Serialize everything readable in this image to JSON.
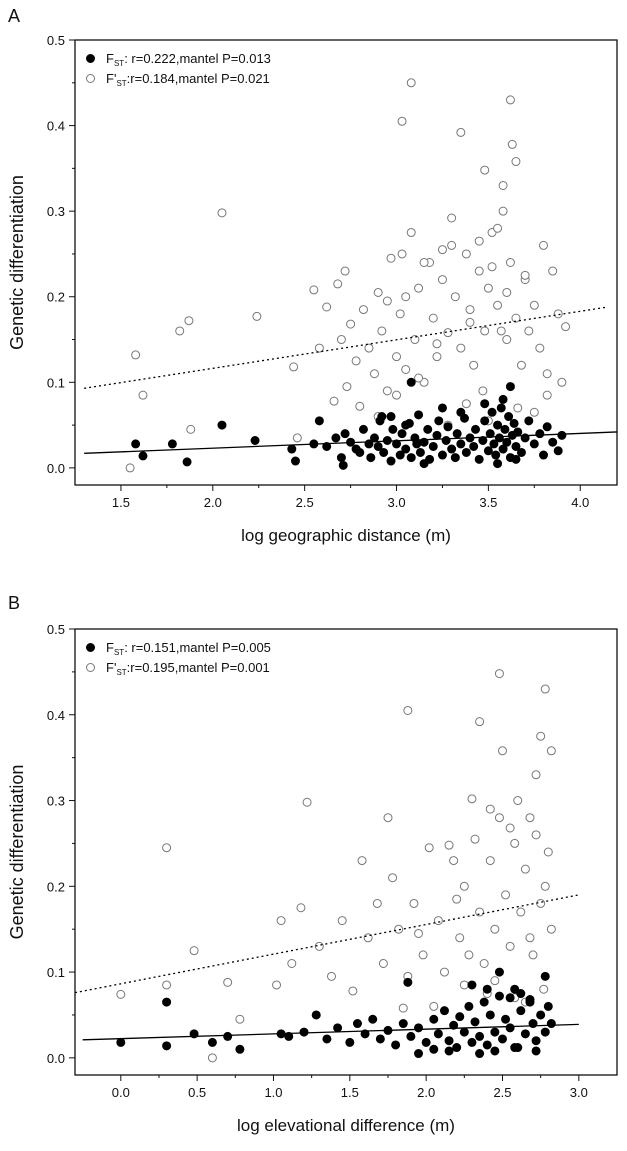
{
  "figure": {
    "panels": [
      {
        "letter": "A",
        "legend": {
          "fst_prefix": "F",
          "fst_sub": "ST",
          "fst_rest": ": r=0.222,mantel P=0.013",
          "fprime_prefix": "F'",
          "fprime_sub": "ST",
          "fprime_rest": ":r=0.184,mantel P=0.021"
        }
      },
      {
        "letter": "B",
        "legend": {
          "fst_prefix": "F",
          "fst_sub": "ST",
          "fst_rest": ": r=0.151,mantel P=0.005",
          "fprime_prefix": "F'",
          "fprime_sub": "ST",
          "fprime_rest": ":r=0.195,mantel P=0.001"
        }
      }
    ]
  },
  "chart_data": [
    {
      "type": "scatter",
      "title": "",
      "xlabel": "log geographic distance (m)",
      "ylabel": "Genetic differentiation",
      "xlim": [
        1.25,
        4.2
      ],
      "ylim": [
        -0.02,
        0.5
      ],
      "xticks": [
        1.5,
        2.0,
        2.5,
        3.0,
        3.5,
        4.0
      ],
      "xtick_labels": [
        "1.5",
        "2.0",
        "2.5",
        "3.0",
        "3.5",
        "4.0"
      ],
      "yticks": [
        0.0,
        0.1,
        0.2,
        0.3,
        0.4,
        0.5
      ],
      "ytick_labels": [
        "0.0",
        "0.1",
        "0.2",
        "0.3",
        "0.4",
        "0.5"
      ],
      "grid": false,
      "legend_position": "top-left",
      "series": [
        {
          "name": "FST: r=0.222,mantel P=0.013",
          "marker": "filled-circle",
          "color": "#000000",
          "fit": {
            "style": "solid",
            "x0": 1.3,
            "y0": 0.017,
            "x1": 4.2,
            "y1": 0.042
          },
          "x": [
            1.58,
            1.62,
            1.78,
            1.86,
            2.05,
            2.23,
            2.43,
            2.45,
            2.55,
            2.58,
            2.62,
            2.67,
            2.7,
            2.71,
            2.72,
            2.75,
            2.78,
            2.8,
            2.82,
            2.85,
            2.86,
            2.88,
            2.9,
            2.91,
            2.93,
            2.95,
            2.97,
            2.98,
            3.0,
            3.02,
            3.03,
            3.05,
            3.07,
            3.08,
            3.1,
            3.11,
            3.12,
            3.13,
            3.15,
            3.17,
            3.18,
            3.2,
            3.22,
            3.23,
            3.25,
            3.27,
            3.28,
            3.3,
            3.32,
            3.33,
            3.35,
            3.37,
            3.38,
            3.4,
            3.42,
            3.43,
            3.45,
            3.47,
            3.48,
            3.5,
            3.51,
            3.52,
            3.53,
            3.54,
            3.55,
            3.56,
            3.57,
            3.58,
            3.59,
            3.6,
            3.61,
            3.62,
            3.63,
            3.64,
            3.65,
            3.66,
            3.68,
            3.7,
            3.72,
            3.75,
            3.78,
            3.8,
            3.82,
            3.85,
            3.88,
            3.9,
            3.08,
            3.62,
            2.97,
            3.35,
            3.05,
            3.48,
            3.58,
            3.15,
            2.92,
            3.25,
            3.55,
            3.65
          ],
          "y": [
            0.028,
            0.014,
            0.028,
            0.007,
            0.05,
            0.032,
            0.022,
            0.008,
            0.028,
            0.055,
            0.025,
            0.035,
            0.012,
            0.003,
            0.04,
            0.03,
            0.022,
            0.018,
            0.045,
            0.028,
            0.012,
            0.035,
            0.025,
            0.055,
            0.018,
            0.032,
            0.008,
            0.045,
            0.028,
            0.015,
            0.04,
            0.022,
            0.052,
            0.012,
            0.035,
            0.028,
            0.062,
            0.018,
            0.03,
            0.045,
            0.01,
            0.025,
            0.038,
            0.055,
            0.015,
            0.032,
            0.048,
            0.022,
            0.012,
            0.04,
            0.028,
            0.058,
            0.018,
            0.035,
            0.025,
            0.045,
            0.01,
            0.032,
            0.055,
            0.02,
            0.04,
            0.065,
            0.028,
            0.015,
            0.05,
            0.035,
            0.07,
            0.022,
            0.045,
            0.03,
            0.06,
            0.012,
            0.038,
            0.052,
            0.025,
            0.042,
            0.018,
            0.035,
            0.055,
            0.028,
            0.04,
            0.015,
            0.048,
            0.03,
            0.02,
            0.038,
            0.1,
            0.095,
            0.06,
            0.065,
            0.05,
            0.075,
            0.08,
            0.005,
            0.06,
            0.07,
            0.005,
            0.01
          ]
        },
        {
          "name": "F'ST:r=0.184,mantel P=0.021",
          "marker": "open-circle",
          "color": "#777777",
          "fit": {
            "style": "dotted",
            "x0": 1.3,
            "y0": 0.093,
            "x1": 4.15,
            "y1": 0.188
          },
          "x": [
            1.55,
            1.58,
            1.62,
            1.82,
            1.87,
            1.88,
            2.05,
            2.24,
            2.44,
            2.46,
            2.55,
            2.58,
            2.62,
            2.66,
            2.68,
            2.7,
            2.72,
            2.73,
            2.75,
            2.78,
            2.8,
            2.82,
            2.85,
            2.88,
            2.9,
            2.92,
            2.95,
            2.97,
            3.0,
            3.02,
            3.03,
            3.05,
            3.08,
            3.1,
            3.12,
            3.15,
            3.18,
            3.2,
            3.22,
            3.25,
            3.28,
            3.3,
            3.32,
            3.35,
            3.38,
            3.4,
            3.42,
            3.45,
            3.48,
            3.5,
            3.52,
            3.55,
            3.58,
            3.6,
            3.62,
            3.65,
            3.68,
            3.7,
            3.72,
            3.75,
            3.78,
            3.8,
            3.82,
            3.85,
            3.88,
            3.9,
            3.92,
            3.08,
            3.03,
            3.62,
            3.35,
            3.48,
            3.58,
            3.63,
            3.65,
            3.3,
            3.55,
            3.45,
            3.25,
            3.15,
            3.05,
            2.95,
            3.4,
            3.52,
            3.6,
            3.7,
            3.57,
            3.22,
            3.12,
            3.0,
            2.9,
            3.38,
            3.47,
            3.66,
            3.75,
            3.82,
            3.5,
            3.28
          ],
          "y": [
            0.0,
            0.132,
            0.085,
            0.16,
            0.172,
            0.045,
            0.298,
            0.177,
            0.118,
            0.035,
            0.208,
            0.14,
            0.188,
            0.078,
            0.215,
            0.15,
            0.23,
            0.095,
            0.168,
            0.125,
            0.072,
            0.185,
            0.14,
            0.11,
            0.205,
            0.16,
            0.09,
            0.245,
            0.13,
            0.18,
            0.25,
            0.115,
            0.275,
            0.15,
            0.21,
            0.1,
            0.24,
            0.175,
            0.13,
            0.22,
            0.158,
            0.26,
            0.2,
            0.14,
            0.25,
            0.17,
            0.12,
            0.23,
            0.16,
            0.21,
            0.275,
            0.19,
            0.3,
            0.15,
            0.24,
            0.175,
            0.12,
            0.22,
            0.16,
            0.19,
            0.14,
            0.26,
            0.11,
            0.23,
            0.18,
            0.1,
            0.165,
            0.45,
            0.405,
            0.43,
            0.392,
            0.348,
            0.33,
            0.378,
            0.358,
            0.292,
            0.28,
            0.265,
            0.255,
            0.24,
            0.2,
            0.195,
            0.185,
            0.235,
            0.205,
            0.225,
            0.16,
            0.145,
            0.105,
            0.085,
            0.06,
            0.075,
            0.09,
            0.07,
            0.065,
            0.085,
            0.055,
            0.05
          ]
        }
      ]
    },
    {
      "type": "scatter",
      "title": "",
      "xlabel": "log elevational difference (m)",
      "ylabel": "Genetic differentiation",
      "xlim": [
        -0.3,
        3.25
      ],
      "ylim": [
        -0.02,
        0.5
      ],
      "xticks": [
        0.0,
        0.5,
        1.0,
        1.5,
        2.0,
        2.5,
        3.0
      ],
      "xtick_labels": [
        "0.0",
        "0.5",
        "1.0",
        "1.5",
        "2.0",
        "2.5",
        "3.0"
      ],
      "yticks": [
        0.0,
        0.1,
        0.2,
        0.3,
        0.4,
        0.5
      ],
      "ytick_labels": [
        "0.0",
        "0.1",
        "0.2",
        "0.3",
        "0.4",
        "0.5"
      ],
      "grid": false,
      "legend_position": "top-left",
      "series": [
        {
          "name": "FST: r=0.151,mantel P=0.005",
          "marker": "filled-circle",
          "color": "#000000",
          "fit": {
            "style": "solid",
            "x0": -0.25,
            "y0": 0.021,
            "x1": 3.0,
            "y1": 0.039
          },
          "x": [
            0.0,
            0.3,
            0.3,
            0.48,
            0.6,
            0.7,
            0.78,
            1.05,
            1.1,
            1.2,
            1.28,
            1.35,
            1.42,
            1.5,
            1.55,
            1.6,
            1.65,
            1.7,
            1.75,
            1.8,
            1.85,
            1.9,
            1.95,
            2.0,
            2.05,
            2.08,
            2.12,
            2.15,
            2.18,
            2.2,
            2.22,
            2.25,
            2.28,
            2.3,
            2.32,
            2.35,
            2.38,
            2.4,
            2.42,
            2.45,
            2.48,
            2.5,
            2.52,
            2.55,
            2.58,
            2.6,
            2.62,
            2.65,
            2.68,
            2.7,
            2.72,
            2.75,
            2.78,
            2.8,
            2.82,
            2.78,
            2.48,
            2.3,
            1.88,
            2.62,
            2.4,
            2.55,
            2.68,
            1.95,
            2.15,
            2.05,
            2.35,
            2.45,
            2.58,
            2.72
          ],
          "y": [
            0.018,
            0.065,
            0.014,
            0.028,
            0.018,
            0.025,
            0.01,
            0.028,
            0.025,
            0.03,
            0.05,
            0.022,
            0.035,
            0.018,
            0.04,
            0.028,
            0.045,
            0.022,
            0.032,
            0.015,
            0.04,
            0.025,
            0.035,
            0.018,
            0.045,
            0.028,
            0.055,
            0.02,
            0.038,
            0.012,
            0.048,
            0.03,
            0.06,
            0.018,
            0.042,
            0.025,
            0.065,
            0.015,
            0.05,
            0.03,
            0.072,
            0.022,
            0.045,
            0.035,
            0.08,
            0.012,
            0.055,
            0.028,
            0.068,
            0.04,
            0.02,
            0.05,
            0.03,
            0.06,
            0.04,
            0.095,
            0.1,
            0.085,
            0.088,
            0.075,
            0.08,
            0.07,
            0.065,
            0.005,
            0.008,
            0.01,
            0.005,
            0.008,
            0.012,
            0.008
          ]
        },
        {
          "name": "F'ST:r=0.195,mantel P=0.001",
          "marker": "open-circle",
          "color": "#777777",
          "fit": {
            "style": "dotted",
            "x0": -0.3,
            "y0": 0.076,
            "x1": 3.0,
            "y1": 0.19
          },
          "x": [
            0.0,
            0.3,
            0.3,
            0.48,
            0.6,
            0.7,
            0.78,
            1.02,
            1.05,
            1.12,
            1.18,
            1.22,
            1.3,
            1.38,
            1.45,
            1.52,
            1.58,
            1.62,
            1.68,
            1.72,
            1.78,
            1.82,
            1.88,
            1.92,
            1.98,
            2.02,
            2.08,
            2.12,
            2.18,
            2.22,
            2.25,
            2.28,
            2.32,
            2.35,
            2.38,
            2.42,
            2.45,
            2.48,
            2.52,
            2.55,
            2.58,
            2.62,
            2.65,
            2.68,
            2.72,
            2.75,
            2.78,
            2.8,
            2.82,
            2.48,
            1.88,
            2.35,
            2.78,
            2.75,
            2.5,
            2.72,
            2.82,
            2.3,
            2.6,
            2.42,
            1.75,
            2.15,
            2.68,
            2.55,
            2.2,
            1.95,
            2.05,
            2.65,
            2.4,
            2.77,
            2.58,
            2.25,
            1.85,
            2.45,
            2.7
          ],
          "y": [
            0.074,
            0.245,
            0.085,
            0.125,
            0.0,
            0.088,
            0.045,
            0.085,
            0.16,
            0.11,
            0.175,
            0.298,
            0.13,
            0.095,
            0.16,
            0.078,
            0.23,
            0.14,
            0.18,
            0.11,
            0.21,
            0.15,
            0.095,
            0.18,
            0.12,
            0.245,
            0.16,
            0.1,
            0.23,
            0.14,
            0.2,
            0.12,
            0.255,
            0.17,
            0.11,
            0.23,
            0.15,
            0.28,
            0.19,
            0.13,
            0.25,
            0.17,
            0.22,
            0.14,
            0.26,
            0.18,
            0.2,
            0.24,
            0.15,
            0.448,
            0.405,
            0.392,
            0.43,
            0.375,
            0.358,
            0.33,
            0.358,
            0.302,
            0.3,
            0.29,
            0.28,
            0.248,
            0.28,
            0.268,
            0.185,
            0.145,
            0.06,
            0.065,
            0.075,
            0.08,
            0.07,
            0.085,
            0.058,
            0.09,
            0.12
          ]
        }
      ]
    }
  ]
}
